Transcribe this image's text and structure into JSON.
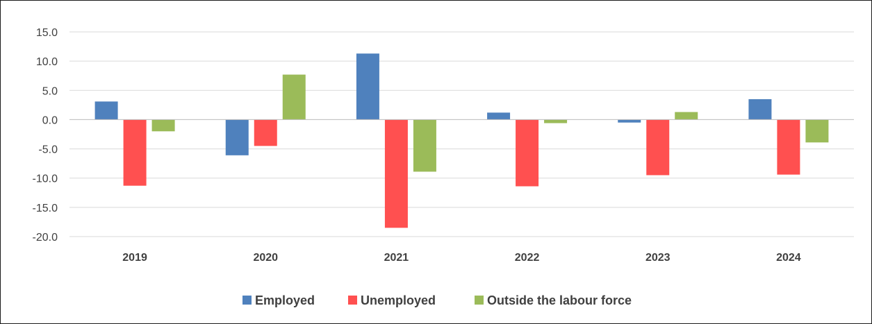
{
  "chart_data": {
    "type": "bar",
    "title": "",
    "xlabel": "",
    "ylabel": "",
    "categories": [
      "2019",
      "2020",
      "2021",
      "2022",
      "2023",
      "2024"
    ],
    "series": [
      {
        "name": "Employed",
        "color": "#4F81BD",
        "values": [
          3.1,
          -6.1,
          11.3,
          1.2,
          -0.5,
          3.5
        ]
      },
      {
        "name": "Unemployed",
        "color": "#FF5050",
        "values": [
          -11.3,
          -4.5,
          -18.5,
          -11.4,
          -9.5,
          -9.4
        ]
      },
      {
        "name": "Outside the labour force",
        "color": "#9BBB59",
        "values": [
          -2.0,
          7.7,
          -8.9,
          -0.6,
          1.3,
          -3.9
        ]
      }
    ],
    "ylim": [
      -20,
      15
    ],
    "yticks": [
      15,
      10,
      5,
      0,
      -5,
      -10,
      -15,
      -20
    ],
    "ytick_labels": [
      "15.0",
      "10.0",
      "5.0",
      "0.0",
      "-5.0",
      "-10.0",
      "-15.0",
      "-20.0"
    ],
    "grid": true,
    "legend_position": "bottom"
  }
}
